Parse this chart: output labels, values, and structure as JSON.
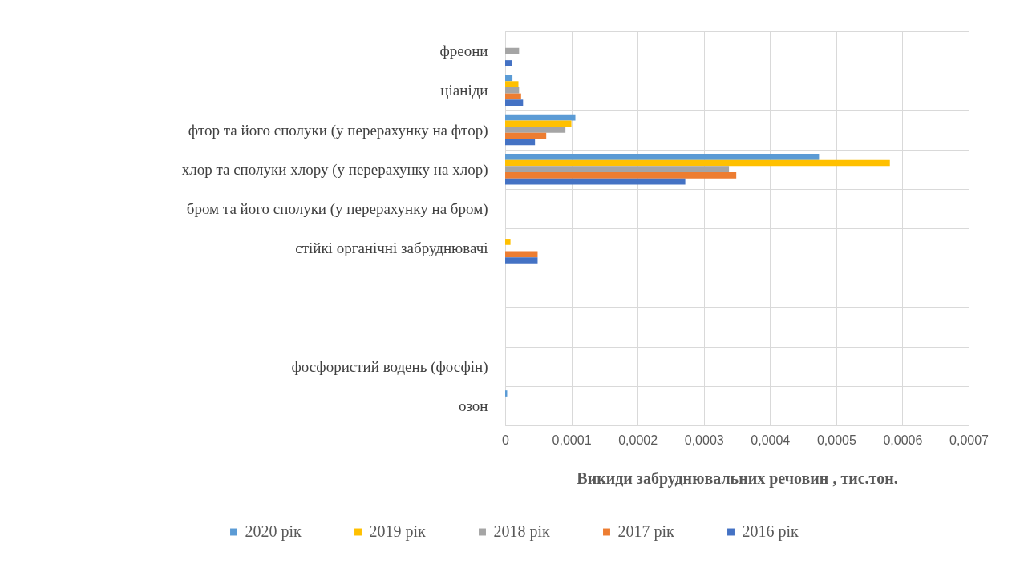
{
  "chart_data": {
    "type": "bar",
    "orientation": "horizontal",
    "xlabel": "Викиди забруднювальних речовин , тис.тон.",
    "categories": [
      "фреони",
      "ціаніди",
      "фтор та його сполуки (у перерахунку на фтор)",
      "хлор та сполуки хлору (у перерахунку на хлор)",
      "бром та його сполуки (у перерахунку на бром)",
      "стійкі органічні забруднювачі",
      null,
      null,
      "фосфористий водень (фосфін)",
      "озон"
    ],
    "series": [
      {
        "name": "2020 рік",
        "color": "#5b9bd5",
        "values": [
          null,
          1.1e-05,
          0.000106,
          0.000474,
          null,
          null,
          null,
          null,
          null,
          3e-06
        ]
      },
      {
        "name": "2019 рік",
        "color": "#ffc000",
        "values": [
          null,
          2e-05,
          0.0001,
          0.000581,
          null,
          8e-06,
          null,
          null,
          null,
          null
        ]
      },
      {
        "name": "2018 рік",
        "color": "#a5a5a5",
        "values": [
          2.1e-05,
          2.1e-05,
          9.1e-05,
          0.000338,
          null,
          null,
          null,
          null,
          null,
          null
        ]
      },
      {
        "name": "2017 рік",
        "color": "#ed7d31",
        "values": [
          null,
          2.4e-05,
          6.2e-05,
          0.000349,
          null,
          4.9e-05,
          null,
          null,
          null,
          null
        ]
      },
      {
        "name": "2016 рік",
        "color": "#4472c4",
        "values": [
          1e-05,
          2.7e-05,
          4.5e-05,
          0.000272,
          null,
          4.9e-05,
          null,
          null,
          null,
          null
        ]
      }
    ],
    "xlim": [
      0,
      0.0007
    ],
    "xticks": [
      0,
      {
        "value": 0.0001,
        "label": "0,0001"
      },
      {
        "value": 0.0002,
        "label": "0,0002"
      },
      {
        "value": 0.0003,
        "label": "0,0003"
      },
      {
        "value": 0.0004,
        "label": "0,0004"
      },
      {
        "value": 0.0005,
        "label": "0,0005"
      },
      {
        "value": 0.0006,
        "label": "0,0006"
      },
      {
        "value": 0.0007,
        "label": "0,0007"
      }
    ],
    "grid": true,
    "legend": "bottom"
  }
}
